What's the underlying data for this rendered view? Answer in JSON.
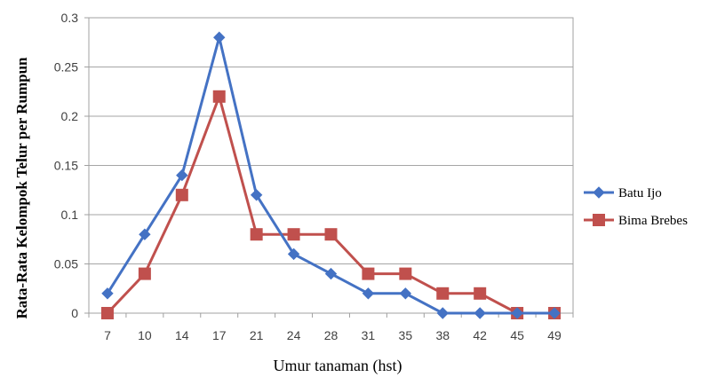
{
  "chart_data": {
    "type": "line",
    "xlabel": "Umur tanaman (hst)",
    "ylabel": "Rata-Rata Kelompok Telur per Rumpun",
    "categories": [
      "7",
      "10",
      "14",
      "17",
      "21",
      "24",
      "28",
      "31",
      "35",
      "38",
      "42",
      "45",
      "49"
    ],
    "ylim": [
      0,
      0.3
    ],
    "yticks": [
      0,
      0.05,
      0.1,
      0.15,
      0.2,
      0.25,
      0.3
    ],
    "ytick_labels": [
      "0",
      "0.05",
      "0.1",
      "0.15",
      "0.2",
      "0.25",
      "0.3"
    ],
    "grid": "horizontal",
    "legend_position": "right",
    "series": [
      {
        "name": "Batu Ijo",
        "color": "#4472C4",
        "marker": "diamond",
        "values": [
          0.02,
          0.08,
          0.14,
          0.28,
          0.12,
          0.06,
          0.04,
          0.02,
          0.02,
          0,
          0,
          0,
          0
        ]
      },
      {
        "name": "Bima Brebes",
        "color": "#C0504D",
        "marker": "square",
        "values": [
          0,
          0.04,
          0.12,
          0.22,
          0.08,
          0.08,
          0.08,
          0.04,
          0.04,
          0.02,
          0.02,
          0,
          0
        ]
      }
    ]
  }
}
